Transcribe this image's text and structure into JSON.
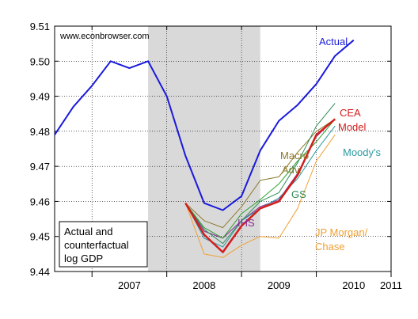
{
  "chart_data": {
    "type": "line",
    "watermark": "www.econbrowser.com",
    "title_box": [
      "Actual and",
      "counterfactual",
      "log GDP"
    ],
    "ylim": [
      9.44,
      9.51
    ],
    "yticks": [
      "9.44",
      "9.45",
      "9.46",
      "9.47",
      "9.48",
      "9.49",
      "9.50",
      "9.51"
    ],
    "xlabels": [
      "2007",
      "2008",
      "2009",
      "2010",
      "2011"
    ],
    "x_period": [
      "2006Q3",
      "2011Q1"
    ],
    "recession": {
      "start": "2007Q4",
      "end": "2009Q2"
    },
    "grid": true,
    "series": [
      {
        "name": "Actual",
        "color": "#1a1adc",
        "width": 2,
        "points": [
          [
            "2006Q3",
            9.479
          ],
          [
            "2006Q4",
            9.487
          ],
          [
            "2007Q1",
            9.493
          ],
          [
            "2007Q2",
            9.5
          ],
          [
            "2007Q3",
            9.498
          ],
          [
            "2007Q4",
            9.5
          ],
          [
            "2008Q1",
            9.49
          ],
          [
            "2008Q2",
            9.473
          ],
          [
            "2008Q3",
            9.4595
          ],
          [
            "2008Q4",
            9.4575
          ],
          [
            "2009Q1",
            9.4615
          ],
          [
            "2009Q2",
            9.4745
          ],
          [
            "2009Q3",
            9.483
          ],
          [
            "2009Q4",
            9.4875
          ],
          [
            "2010Q1",
            9.4935
          ],
          [
            "2010Q2",
            9.5015
          ],
          [
            "2010Q3",
            9.506
          ]
        ]
      },
      {
        "name": "CEA",
        "color": "#2e8b57",
        "width": 1,
        "points": [
          [
            "2008Q2",
            9.4595
          ],
          [
            "2008Q3",
            9.452
          ],
          [
            "2008Q4",
            9.448
          ],
          [
            "2009Q1",
            9.4545
          ],
          [
            "2009Q2",
            9.46
          ],
          [
            "2009Q3",
            9.4625
          ],
          [
            "2009Q4",
            9.471
          ],
          [
            "2010Q1",
            9.4815
          ],
          [
            "2010Q2",
            9.488
          ]
        ]
      },
      {
        "name": "Model",
        "color": "#d21e1e",
        "width": 2.5,
        "points": [
          [
            "2008Q2",
            9.4595
          ],
          [
            "2008Q3",
            9.4505
          ],
          [
            "2008Q4",
            9.4455
          ],
          [
            "2009Q1",
            9.453
          ],
          [
            "2009Q2",
            9.458
          ],
          [
            "2009Q3",
            9.46
          ],
          [
            "2009Q4",
            9.4675
          ],
          [
            "2010Q1",
            9.479
          ],
          [
            "2010Q2",
            9.4835
          ]
        ]
      },
      {
        "name": "Moody's",
        "color": "#2a9aa0",
        "width": 1,
        "points": [
          [
            "2008Q2",
            9.4595
          ],
          [
            "2008Q3",
            9.4495
          ],
          [
            "2008Q4",
            9.447
          ],
          [
            "2009Q1",
            9.4545
          ],
          [
            "2009Q2",
            9.458
          ],
          [
            "2009Q3",
            9.461
          ],
          [
            "2009Q4",
            9.4665
          ],
          [
            "2010Q1",
            9.4745
          ],
          [
            "2010Q2",
            9.4815
          ]
        ]
      },
      {
        "name": "Macro Adv.",
        "color": "#8c7a2a",
        "width": 1,
        "points": [
          [
            "2008Q2",
            9.4595
          ],
          [
            "2008Q3",
            9.4545
          ],
          [
            "2008Q4",
            9.4525
          ],
          [
            "2009Q1",
            9.4585
          ],
          [
            "2009Q2",
            9.466
          ],
          [
            "2009Q3",
            9.467
          ],
          [
            "2009Q4",
            9.474
          ],
          [
            "2010Q1",
            9.48
          ],
          [
            "2010Q2",
            9.4835
          ]
        ]
      },
      {
        "name": "GS",
        "color": "#2ea02e",
        "width": 1,
        "points": [
          [
            "2008Q2",
            9.4595
          ],
          [
            "2008Q3",
            9.4525
          ],
          [
            "2008Q4",
            9.4495
          ],
          [
            "2009Q1",
            9.4565
          ],
          [
            "2009Q2",
            9.4605
          ],
          [
            "2009Q3",
            9.465
          ],
          [
            "2009Q4",
            9.4715
          ],
          [
            "2010Q1",
            9.477
          ],
          [
            "2010Q2",
            9.4835
          ]
        ]
      },
      {
        "name": "IHS",
        "color": "#8a2a9a",
        "width": 1,
        "points": [
          [
            "2008Q2",
            9.4595
          ],
          [
            "2008Q3",
            9.4515
          ],
          [
            "2008Q4",
            9.4495
          ],
          [
            "2009Q1",
            9.4545
          ],
          [
            "2009Q2",
            9.4585
          ],
          [
            "2009Q3",
            9.4605
          ],
          [
            "2009Q4",
            9.468
          ],
          [
            "2010Q1",
            9.4785
          ],
          [
            "2010Q2",
            9.4835
          ]
        ]
      },
      {
        "name": "JP Morgan/\nChase",
        "color": "#f0a030",
        "width": 1,
        "points": [
          [
            "2008Q2",
            9.4595
          ],
          [
            "2008Q3",
            9.445
          ],
          [
            "2008Q4",
            9.444
          ],
          [
            "2009Q1",
            9.4475
          ],
          [
            "2009Q2",
            9.45
          ],
          [
            "2009Q3",
            9.4495
          ],
          [
            "2009Q4",
            9.458
          ],
          [
            "2010Q1",
            9.4715
          ],
          [
            "2010Q2",
            9.479
          ]
        ]
      }
    ],
    "annotations": [
      {
        "text": "Actual",
        "color": "#1a1adc"
      },
      {
        "text": "CEA",
        "color": "#d21e1e"
      },
      {
        "text": "Model",
        "color": "#d21e1e"
      },
      {
        "text": "Moody's",
        "color": "#2a9aa0"
      },
      {
        "text": "Macro",
        "color": "#8c7a2a"
      },
      {
        "text": "Adv.",
        "color": "#8c7a2a"
      },
      {
        "text": "GS",
        "color": "#2e8b57"
      },
      {
        "text": "IHS",
        "color": "#8a2a9a"
      },
      {
        "text": "JP Morgan/",
        "color": "#f0a030"
      },
      {
        "text": "Chase",
        "color": "#f0a030"
      }
    ]
  }
}
